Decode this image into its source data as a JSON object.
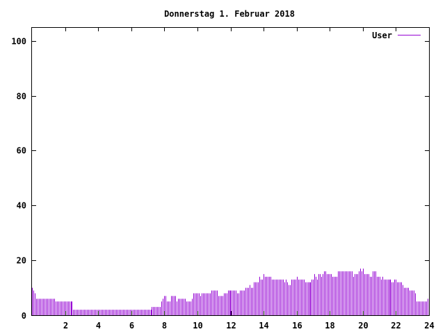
{
  "chart_data": {
    "type": "bar",
    "style": "impulses",
    "title": "Donnerstag 1. Februar 2018",
    "xlabel": "",
    "ylabel": "",
    "xlim": [
      0,
      24
    ],
    "ylim": [
      0,
      105
    ],
    "x_ticks": [
      "2",
      "4",
      "6",
      "8",
      "10",
      "12",
      "14",
      "16",
      "18",
      "20",
      "22",
      "24"
    ],
    "y_ticks": [
      "20",
      "40",
      "60",
      "80",
      "100"
    ],
    "grid": false,
    "legend_position": "top-right",
    "x_step_hours": 0.0833333,
    "series": [
      {
        "name": "User",
        "color": "#9400d3",
        "values": [
          10,
          9,
          8,
          6,
          6,
          6,
          6,
          6,
          6,
          6,
          6,
          6,
          6,
          6,
          6,
          6,
          6,
          5,
          5,
          5,
          5,
          5,
          5,
          5,
          5,
          5,
          5,
          5,
          5,
          5,
          2,
          2,
          2,
          2,
          2,
          2,
          2,
          2,
          2,
          2,
          2,
          2,
          2,
          2,
          2,
          2,
          2,
          2,
          2,
          2,
          2,
          2,
          2,
          2,
          2,
          2,
          2,
          2,
          2,
          2,
          2,
          2,
          2,
          2,
          2,
          2,
          2,
          2,
          2,
          2,
          2,
          2,
          2,
          2,
          2,
          2,
          2,
          2,
          2,
          2,
          2,
          2,
          2,
          2,
          2,
          2,
          2,
          3,
          3,
          3,
          3,
          3,
          3,
          3,
          5,
          6,
          7,
          7,
          5,
          5,
          5,
          7,
          7,
          7,
          7,
          5,
          6,
          6,
          6,
          6,
          6,
          6,
          5,
          5,
          5,
          5,
          6,
          8,
          8,
          8,
          8,
          8,
          7,
          8,
          8,
          8,
          8,
          8,
          8,
          8,
          9,
          9,
          9,
          9,
          9,
          7,
          7,
          7,
          7,
          8,
          8,
          8,
          9,
          9,
          9,
          9,
          9,
          9,
          9,
          8,
          8,
          9,
          9,
          9,
          9,
          10,
          10,
          10,
          11,
          10,
          10,
          12,
          12,
          12,
          12,
          14,
          13,
          13,
          15,
          14,
          14,
          14,
          14,
          14,
          13,
          13,
          13,
          13,
          13,
          13,
          13,
          13,
          13,
          12,
          13,
          12,
          11,
          11,
          13,
          13,
          13,
          13,
          14,
          13,
          13,
          13,
          13,
          13,
          12,
          12,
          12,
          12,
          12,
          13,
          13,
          15,
          14,
          13,
          15,
          15,
          14,
          15,
          16,
          16,
          15,
          15,
          15,
          15,
          14,
          14,
          14,
          14,
          16,
          16,
          16,
          16,
          16,
          16,
          16,
          16,
          16,
          16,
          16,
          14,
          15,
          15,
          15,
          16,
          17,
          16,
          17,
          15,
          15,
          15,
          15,
          14,
          14,
          16,
          16,
          16,
          14,
          14,
          14,
          13,
          14,
          13,
          13,
          13,
          13,
          13,
          13,
          12,
          12,
          13,
          13,
          12,
          12,
          12,
          12,
          11,
          10,
          10,
          10,
          10,
          9,
          9,
          9,
          9,
          8,
          5,
          5,
          5,
          5,
          5,
          5,
          5,
          5,
          6
        ]
      }
    ]
  }
}
